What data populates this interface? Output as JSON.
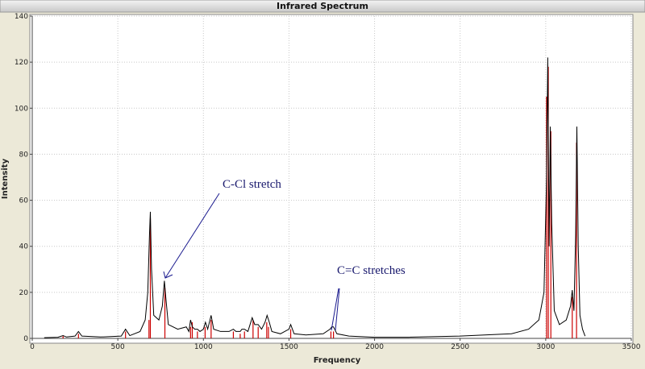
{
  "chart_data": {
    "type": "line",
    "title": "Infrared Spectrum",
    "xlabel": "Frequency",
    "ylabel": "Intensity",
    "xlim": [
      0,
      3500
    ],
    "ylim": [
      0,
      140
    ],
    "xticks": [
      0,
      500,
      1000,
      1500,
      2000,
      2500,
      3000,
      3500
    ],
    "yticks": [
      0,
      20,
      40,
      60,
      80,
      100,
      120,
      140
    ],
    "grid": true,
    "series": [
      {
        "color": "#000000",
        "x": [
          70,
          150,
          180,
          200,
          250,
          270,
          290,
          400,
          520,
          545,
          570,
          630,
          660,
          675,
          685,
          690,
          697,
          710,
          740,
          760,
          772,
          780,
          795,
          850,
          900,
          915,
          925,
          935,
          950,
          965,
          980,
          1000,
          1012,
          1025,
          1045,
          1060,
          1100,
          1150,
          1175,
          1190,
          1215,
          1225,
          1240,
          1260,
          1285,
          1300,
          1320,
          1340,
          1360,
          1372,
          1385,
          1400,
          1450,
          1500,
          1510,
          1530,
          1600,
          1700,
          1740,
          1750,
          1760,
          1780,
          1850,
          2000,
          2200,
          2500,
          2800,
          2900,
          2960,
          2990,
          3005,
          3012,
          3020,
          3027,
          3035,
          3050,
          3080,
          3120,
          3145,
          3155,
          3165,
          3175,
          3182,
          3190,
          3200,
          3215,
          3230
        ],
        "values": [
          0.3,
          0.5,
          1.2,
          0.6,
          1,
          3,
          1,
          0.6,
          1,
          4,
          1.2,
          3,
          8,
          20,
          45,
          55,
          30,
          10,
          8,
          14,
          25,
          18,
          6,
          4,
          5,
          3,
          8,
          5,
          4,
          4,
          3,
          4,
          7,
          4,
          10,
          4,
          3,
          3,
          4,
          3,
          3,
          4,
          4,
          3,
          9,
          6,
          6,
          4,
          7,
          10,
          7,
          3,
          2,
          4,
          6,
          2,
          1.5,
          2,
          4,
          5,
          5,
          2,
          1,
          0.5,
          0.5,
          1,
          2,
          4,
          8,
          20,
          70,
          122,
          40,
          92,
          50,
          12,
          6,
          8,
          14,
          21,
          12,
          45,
          92,
          40,
          10,
          4,
          1
        ]
      }
    ],
    "peaks": {
      "color": "#cc0000",
      "x": [
        180,
        270,
        545,
        682,
        690,
        775,
        925,
        935,
        965,
        1010,
        1045,
        1175,
        1215,
        1240,
        1290,
        1320,
        1370,
        1380,
        1510,
        1745,
        1760,
        3005,
        3015,
        3030,
        3155,
        3180
      ],
      "values": [
        1,
        2,
        3,
        8,
        52,
        22,
        5,
        7,
        3,
        5,
        8,
        3,
        2,
        3,
        8,
        5,
        7,
        5,
        4,
        3,
        3,
        105,
        118,
        90,
        18,
        85
      ]
    },
    "annotations": [
      "C-Cl stretch",
      "C=C stretches"
    ]
  }
}
